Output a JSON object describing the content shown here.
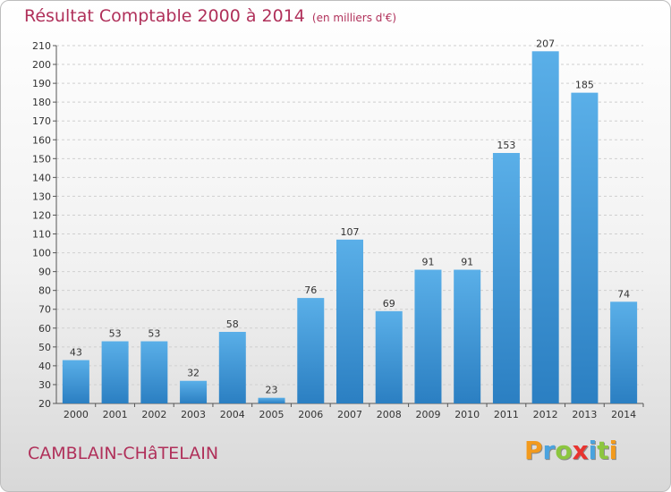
{
  "header": {
    "title": "Résultat Comptable 2000 à 2014",
    "unit": "(en milliers d'€)"
  },
  "footer": {
    "place": "CAMBLAIN-CHâTELAIN",
    "logo_letters": [
      {
        "ch": "P",
        "color": "#f29a1d"
      },
      {
        "ch": "r",
        "color": "#4aa3df"
      },
      {
        "ch": "o",
        "color": "#8cc63f"
      },
      {
        "ch": "x",
        "color": "#e8342f"
      },
      {
        "ch": "i",
        "color": "#4aa3df"
      },
      {
        "ch": "t",
        "color": "#8cc63f"
      },
      {
        "ch": "i",
        "color": "#f29a1d"
      }
    ]
  },
  "colors": {
    "bar_top": "#5aafe8",
    "bar_bottom": "#2b7fc2",
    "title": "#b0305a"
  },
  "chart_data": {
    "type": "bar",
    "categories": [
      "2000",
      "2001",
      "2002",
      "2003",
      "2004",
      "2005",
      "2006",
      "2007",
      "2008",
      "2009",
      "2010",
      "2011",
      "2012",
      "2013",
      "2014"
    ],
    "values": [
      43,
      53,
      53,
      32,
      58,
      23,
      76,
      107,
      69,
      91,
      91,
      153,
      207,
      185,
      74
    ],
    "title": "Résultat Comptable 2000 à 2014",
    "ylim": [
      20,
      210
    ],
    "ytick_step": 10,
    "grid": true,
    "legend": "none"
  }
}
